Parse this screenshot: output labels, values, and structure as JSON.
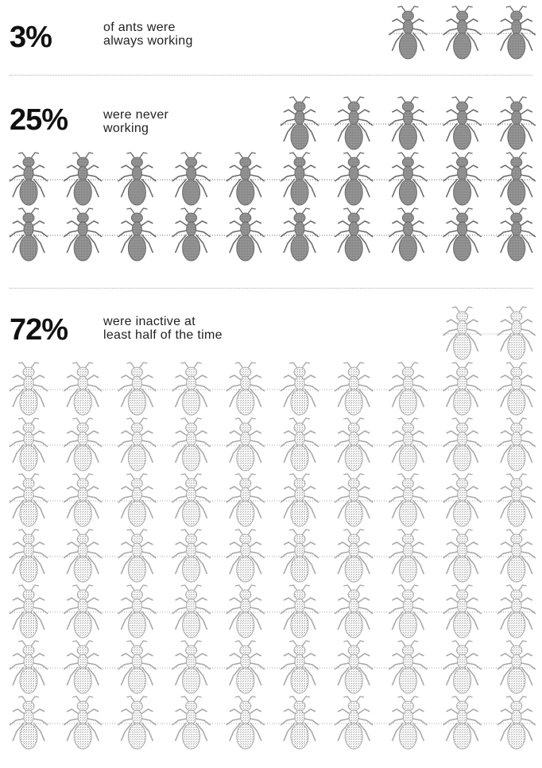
{
  "colors": {
    "working": "#8d8d8d",
    "never": "#8d8d8d",
    "inactive": "#c8c8c8",
    "text": "#111111"
  },
  "icon": "ant-icon",
  "stats": [
    {
      "percent": "3%",
      "label": "of ants were always working",
      "label_lines": [
        "of ants were",
        "always working"
      ]
    },
    {
      "percent": "25%",
      "label": "were never working",
      "label_lines": [
        "were never",
        "working"
      ]
    },
    {
      "percent": "72%",
      "label": "were inactive at least half of the time",
      "label_lines": [
        "were inactive at",
        "least half of the time"
      ]
    }
  ],
  "chart_data": {
    "type": "pictogram",
    "unit": "ant",
    "total": 100,
    "series": [
      {
        "name": "always working",
        "value": 3,
        "percent": 3,
        "style": "working"
      },
      {
        "name": "never working",
        "value": 25,
        "percent": 25,
        "style": "never"
      },
      {
        "name": "inactive at least half of the time",
        "value": 72,
        "percent": 72,
        "style": "inactive"
      }
    ]
  }
}
